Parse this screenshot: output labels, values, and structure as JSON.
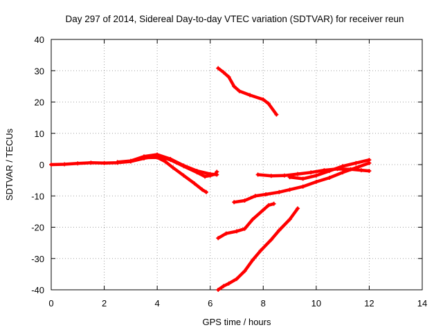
{
  "chart_data": {
    "type": "line",
    "title": "Day 297 of 2014, Sidereal Day-to-day VTEC variation (SDTVAR) for receiver reun",
    "xlabel": "GPS time / hours",
    "ylabel": "SDTVAR / TECUs",
    "xlim": [
      0,
      14
    ],
    "ylim": [
      -40,
      40
    ],
    "xticks": [
      "0",
      "2",
      "4",
      "6",
      "8",
      "10",
      "12",
      "14"
    ],
    "yticks": [
      "-40",
      "-30",
      "-20",
      "-10",
      "0",
      "10",
      "20",
      "30",
      "40"
    ],
    "grid": true,
    "color": "#ff0000",
    "series": [
      {
        "values": [
          [
            0,
            0
          ],
          [
            0.5,
            0.1
          ],
          [
            1,
            0.4
          ],
          [
            1.5,
            0.6
          ],
          [
            2,
            0.5
          ],
          [
            2.5,
            0.6
          ],
          [
            3,
            1
          ],
          [
            3.5,
            2
          ],
          [
            4,
            2.8
          ],
          [
            4.5,
            1.5
          ],
          [
            5,
            -0.5
          ],
          [
            5.5,
            -2.5
          ],
          [
            5.8,
            -3.8
          ],
          [
            6.0,
            -3.5
          ],
          [
            6.2,
            -3
          ],
          [
            6.25,
            -2.3
          ]
        ]
      },
      {
        "values": [
          [
            2.5,
            0.8
          ],
          [
            3,
            1.2
          ],
          [
            3.5,
            2.6
          ],
          [
            4,
            3.2
          ],
          [
            4.5,
            1.8
          ],
          [
            5,
            -0.3
          ],
          [
            5.5,
            -2
          ],
          [
            6,
            -3
          ],
          [
            6.25,
            -3.2
          ]
        ]
      },
      {
        "values": [
          [
            3.5,
            2.2
          ],
          [
            4,
            2.3
          ],
          [
            4.3,
            1
          ],
          [
            4.6,
            -1
          ],
          [
            5,
            -3.5
          ],
          [
            5.4,
            -6
          ],
          [
            5.7,
            -8
          ],
          [
            5.85,
            -8.8
          ]
        ]
      },
      {
        "values": [
          [
            6.3,
            30.8
          ],
          [
            6.5,
            29.5
          ],
          [
            6.7,
            28
          ],
          [
            6.9,
            25
          ],
          [
            7.1,
            23.5
          ],
          [
            7.5,
            22.2
          ],
          [
            8,
            20.8
          ],
          [
            8.2,
            19.5
          ],
          [
            8.5,
            16
          ]
        ]
      },
      {
        "values": [
          [
            6.3,
            -40
          ],
          [
            6.5,
            -38.8
          ],
          [
            6.7,
            -38
          ],
          [
            7,
            -36.5
          ],
          [
            7.3,
            -34
          ],
          [
            7.6,
            -30.5
          ],
          [
            7.9,
            -27.5
          ],
          [
            8.3,
            -24
          ],
          [
            8.6,
            -21
          ],
          [
            9,
            -17.5
          ],
          [
            9.3,
            -14
          ]
        ]
      },
      {
        "values": [
          [
            6.3,
            -23.5
          ],
          [
            6.6,
            -22
          ],
          [
            7,
            -21.3
          ],
          [
            7.3,
            -20.5
          ],
          [
            7.6,
            -17.5
          ],
          [
            8,
            -14.5
          ],
          [
            8.2,
            -13
          ],
          [
            8.4,
            -12.5
          ]
        ]
      },
      {
        "values": [
          [
            6.9,
            -12
          ],
          [
            7.3,
            -11.5
          ],
          [
            7.7,
            -10
          ],
          [
            8.1,
            -9.5
          ],
          [
            8.6,
            -8.8
          ],
          [
            9,
            -8
          ],
          [
            9.5,
            -7
          ],
          [
            10,
            -5.5
          ],
          [
            10.5,
            -4.2
          ],
          [
            11,
            -2.5
          ],
          [
            11.5,
            -1
          ],
          [
            12,
            0.5
          ]
        ]
      },
      {
        "values": [
          [
            7.8,
            -3.2
          ],
          [
            8.3,
            -3.6
          ],
          [
            8.8,
            -3.5
          ],
          [
            9.3,
            -3
          ],
          [
            9.8,
            -2.5
          ],
          [
            10.3,
            -1.8
          ],
          [
            10.8,
            -1.4
          ],
          [
            11.3,
            -1.5
          ],
          [
            11.7,
            -1.8
          ],
          [
            12,
            -2
          ]
        ]
      },
      {
        "values": [
          [
            9,
            -4
          ],
          [
            9.5,
            -4.5
          ],
          [
            10,
            -3.5
          ],
          [
            10.5,
            -2
          ],
          [
            11,
            -0.5
          ],
          [
            11.5,
            0.5
          ],
          [
            12,
            1.5
          ]
        ]
      }
    ]
  }
}
